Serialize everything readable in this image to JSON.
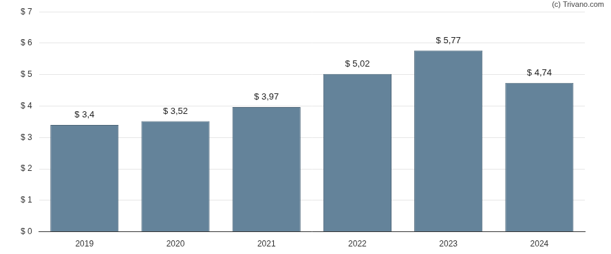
{
  "chart_data": {
    "type": "bar",
    "annotations": [
      "(c) Trivano.com"
    ],
    "categories": [
      "2019",
      "2020",
      "2021",
      "2022",
      "2023",
      "2024"
    ],
    "values": [
      3.4,
      3.52,
      3.97,
      5.02,
      5.77,
      4.74
    ],
    "value_labels": [
      "$ 3,4",
      "$ 3,52",
      "$ 3,97",
      "$ 5,02",
      "$ 5,77",
      "$ 4,74"
    ],
    "color": "#64839a",
    "ylim": [
      0,
      7
    ],
    "yticks": [
      {
        "value": 0,
        "label": "$ 0"
      },
      {
        "value": 1,
        "label": "$ 1"
      },
      {
        "value": 2,
        "label": "$ 2"
      },
      {
        "value": 3,
        "label": "$ 3"
      },
      {
        "value": 4,
        "label": "$ 4"
      },
      {
        "value": 5,
        "label": "$ 5"
      },
      {
        "value": 6,
        "label": "$ 6"
      },
      {
        "value": 7,
        "label": "$ 7"
      }
    ],
    "grid": true,
    "data_labels": true
  }
}
